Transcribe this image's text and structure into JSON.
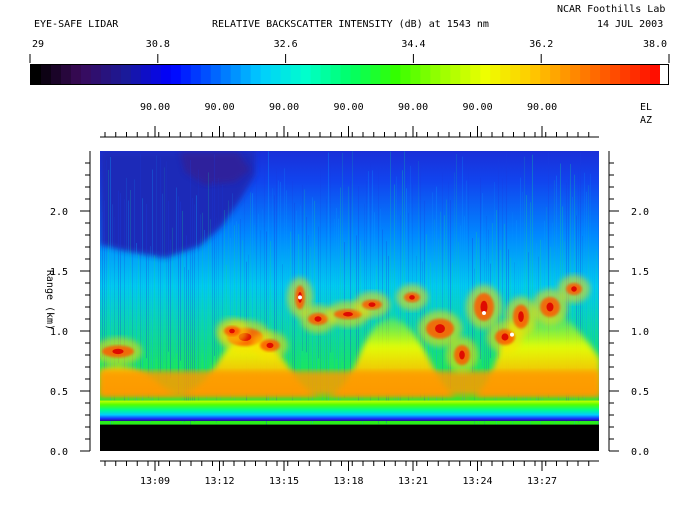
{
  "header": {
    "left_title": "EYE-SAFE LIDAR",
    "center_title": "RELATIVE BACKSCATTER INTENSITY (dB) at 1543 nm",
    "lab": "NCAR Foothills Lab",
    "date": "14 JUL 2003"
  },
  "colorbar": {
    "ticks": [
      "29",
      "30.8",
      "32.6",
      "34.4",
      "36.2",
      "38.0"
    ],
    "colors": [
      "#000000",
      "#3a0a5a",
      "#1a1a9a",
      "#0000ff",
      "#0066ff",
      "#00ccff",
      "#00ffcc",
      "#00ff66",
      "#33ff00",
      "#99ff00",
      "#eeff00",
      "#ffcc00",
      "#ff8800",
      "#ff4400",
      "#ff0000",
      "#ffffff"
    ]
  },
  "angles": {
    "values": [
      "90.00",
      "90.00",
      "90.00",
      "90.00",
      "90.00",
      "90.00",
      "90.00"
    ],
    "el_label": "EL",
    "az_label": "AZ"
  },
  "chart_data": {
    "type": "heatmap",
    "title": "RELATIVE BACKSCATTER INTENSITY (dB) at 1543 nm",
    "xlabel": "",
    "ylabel": "Range (km)",
    "x_ticks": [
      "13:09",
      "13:12",
      "13:15",
      "13:18",
      "13:21",
      "13:24",
      "13:27"
    ],
    "y_ticks": [
      "0.0",
      "0.5",
      "1.0",
      "1.5",
      "2.0"
    ],
    "ylim": [
      0,
      2.5
    ],
    "xlim": [
      "13:07",
      "13:30"
    ],
    "colorbar_range": [
      29,
      38.0
    ],
    "features": {
      "no_data_below_km": 0.22,
      "strong_return_band_km": [
        0.25,
        0.42
      ],
      "boundary_layer_top_km": [
        0.5,
        0.85
      ],
      "aerosol_plumes_km": [
        0.8,
        1.7
      ]
    }
  }
}
